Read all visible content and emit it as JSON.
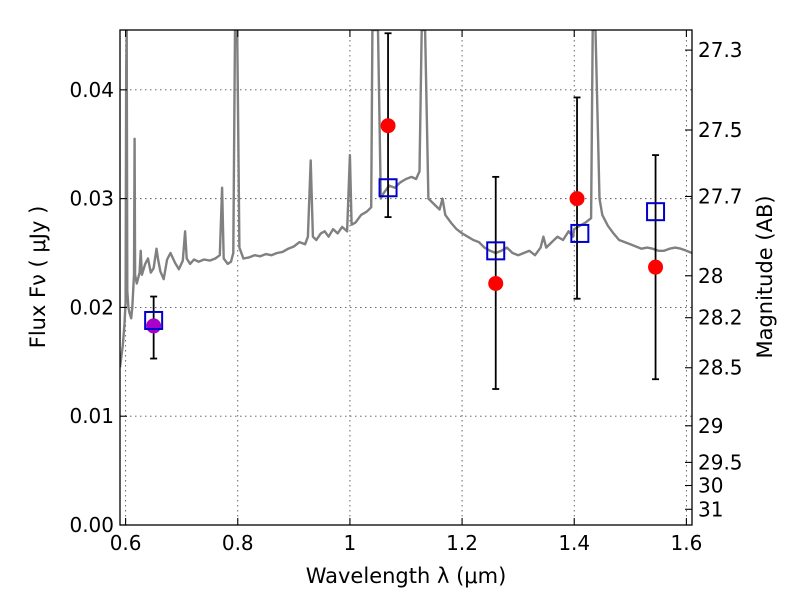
{
  "chart_data": {
    "type": "scatter",
    "title": "",
    "xlabel": "Wavelength  λ (μm)",
    "ylabel": "Flux  Fν ( μJy )",
    "ylabel_right": "Magnitude (AB)",
    "xlim": [
      0.59,
      1.61
    ],
    "ylim": [
      0.0,
      0.0455
    ],
    "grid": true,
    "x_ticks": [
      {
        "value": 0.6,
        "label": "0.6"
      },
      {
        "value": 0.8,
        "label": "0.8"
      },
      {
        "value": 1.0,
        "label": "1"
      },
      {
        "value": 1.2,
        "label": "1.2"
      },
      {
        "value": 1.4,
        "label": "1.4"
      },
      {
        "value": 1.6,
        "label": "1.6"
      }
    ],
    "y_ticks": [
      {
        "value": 0.0,
        "label": "0.00"
      },
      {
        "value": 0.01,
        "label": "0.01"
      },
      {
        "value": 0.02,
        "label": "0.02"
      },
      {
        "value": 0.03,
        "label": "0.03"
      },
      {
        "value": 0.04,
        "label": "0.04"
      }
    ],
    "right_ticks": [
      {
        "mag": 27.3,
        "label": "27.3"
      },
      {
        "mag": 27.5,
        "label": "27.5"
      },
      {
        "mag": 27.7,
        "label": "27.7"
      },
      {
        "mag": 28.0,
        "label": "28"
      },
      {
        "mag": 28.2,
        "label": "28.2"
      },
      {
        "mag": 28.5,
        "label": "28.5"
      },
      {
        "mag": 29.0,
        "label": "29"
      },
      {
        "mag": 29.5,
        "label": "29.5"
      },
      {
        "mag": 30.0,
        "label": "30"
      },
      {
        "mag": 31.0,
        "label": "31"
      }
    ],
    "series": [
      {
        "type": "line",
        "color": "#808080",
        "points": [
          [
            0.59,
            0.0145
          ],
          [
            0.595,
            0.0165
          ],
          [
            0.598,
            0.0185
          ],
          [
            0.6,
            0.0205
          ],
          [
            0.601,
            0.042
          ],
          [
            0.602,
            0.0455
          ],
          [
            0.603,
            0.0215
          ],
          [
            0.605,
            0.02
          ],
          [
            0.607,
            0.0195
          ],
          [
            0.61,
            0.019
          ],
          [
            0.612,
            0.02
          ],
          [
            0.615,
            0.023
          ],
          [
            0.616,
            0.0355
          ],
          [
            0.617,
            0.023
          ],
          [
            0.62,
            0.0222
          ],
          [
            0.625,
            0.0232
          ],
          [
            0.627,
            0.0252
          ],
          [
            0.629,
            0.023
          ],
          [
            0.635,
            0.024
          ],
          [
            0.64,
            0.0245
          ],
          [
            0.645,
            0.0232
          ],
          [
            0.65,
            0.0236
          ],
          [
            0.655,
            0.0254
          ],
          [
            0.658,
            0.0244
          ],
          [
            0.662,
            0.0233
          ],
          [
            0.668,
            0.0226
          ],
          [
            0.674,
            0.0244
          ],
          [
            0.68,
            0.025
          ],
          [
            0.688,
            0.0241
          ],
          [
            0.695,
            0.0235
          ],
          [
            0.702,
            0.0243
          ],
          [
            0.706,
            0.027
          ],
          [
            0.709,
            0.0245
          ],
          [
            0.715,
            0.024
          ],
          [
            0.722,
            0.0244
          ],
          [
            0.73,
            0.0242
          ],
          [
            0.74,
            0.0244
          ],
          [
            0.75,
            0.0243
          ],
          [
            0.76,
            0.0245
          ],
          [
            0.768,
            0.0248
          ],
          [
            0.772,
            0.031
          ],
          [
            0.775,
            0.0245
          ],
          [
            0.782,
            0.024
          ],
          [
            0.788,
            0.0242
          ],
          [
            0.792,
            0.025
          ],
          [
            0.795,
            0.0455
          ],
          [
            0.799,
            0.0455
          ],
          [
            0.803,
            0.0255
          ],
          [
            0.81,
            0.0245
          ],
          [
            0.82,
            0.0246
          ],
          [
            0.83,
            0.0248
          ],
          [
            0.84,
            0.0247
          ],
          [
            0.85,
            0.0249
          ],
          [
            0.86,
            0.0248
          ],
          [
            0.87,
            0.025
          ],
          [
            0.88,
            0.0251
          ],
          [
            0.89,
            0.0254
          ],
          [
            0.9,
            0.0256
          ],
          [
            0.91,
            0.026
          ],
          [
            0.92,
            0.0258
          ],
          [
            0.925,
            0.0265
          ],
          [
            0.93,
            0.0335
          ],
          [
            0.934,
            0.0265
          ],
          [
            0.94,
            0.0262
          ],
          [
            0.948,
            0.0268
          ],
          [
            0.955,
            0.027
          ],
          [
            0.962,
            0.0265
          ],
          [
            0.97,
            0.0272
          ],
          [
            0.978,
            0.0268
          ],
          [
            0.986,
            0.0274
          ],
          [
            0.995,
            0.027
          ],
          [
            1.0,
            0.034
          ],
          [
            1.003,
            0.0276
          ],
          [
            1.01,
            0.0278
          ],
          [
            1.02,
            0.0285
          ],
          [
            1.03,
            0.0288
          ],
          [
            1.038,
            0.0292
          ],
          [
            1.04,
            0.0455
          ],
          [
            1.05,
            0.0455
          ],
          [
            1.055,
            0.03
          ],
          [
            1.06,
            0.0305
          ],
          [
            1.07,
            0.0312
          ],
          [
            1.08,
            0.031
          ],
          [
            1.09,
            0.0315
          ],
          [
            1.1,
            0.0318
          ],
          [
            1.11,
            0.032
          ],
          [
            1.118,
            0.0318
          ],
          [
            1.124,
            0.0325
          ],
          [
            1.128,
            0.0455
          ],
          [
            1.134,
            0.0455
          ],
          [
            1.14,
            0.03
          ],
          [
            1.15,
            0.0295
          ],
          [
            1.16,
            0.029
          ],
          [
            1.165,
            0.03
          ],
          [
            1.17,
            0.0285
          ],
          [
            1.18,
            0.0278
          ],
          [
            1.19,
            0.0272
          ],
          [
            1.2,
            0.0268
          ],
          [
            1.21,
            0.0265
          ],
          [
            1.22,
            0.0262
          ],
          [
            1.23,
            0.026
          ],
          [
            1.24,
            0.0255
          ],
          [
            1.25,
            0.0252
          ],
          [
            1.26,
            0.025
          ],
          [
            1.27,
            0.0252
          ],
          [
            1.28,
            0.0255
          ],
          [
            1.29,
            0.025
          ],
          [
            1.3,
            0.0248
          ],
          [
            1.31,
            0.025
          ],
          [
            1.32,
            0.0252
          ],
          [
            1.33,
            0.0248
          ],
          [
            1.34,
            0.0255
          ],
          [
            1.345,
            0.0265
          ],
          [
            1.35,
            0.0255
          ],
          [
            1.36,
            0.026
          ],
          [
            1.37,
            0.0265
          ],
          [
            1.38,
            0.0262
          ],
          [
            1.39,
            0.027
          ],
          [
            1.398,
            0.0265
          ],
          [
            1.4,
            0.0272
          ],
          [
            1.41,
            0.0275
          ],
          [
            1.42,
            0.0278
          ],
          [
            1.43,
            0.0282
          ],
          [
            1.433,
            0.0455
          ],
          [
            1.438,
            0.0455
          ],
          [
            1.445,
            0.03
          ],
          [
            1.45,
            0.0285
          ],
          [
            1.46,
            0.0275
          ],
          [
            1.47,
            0.0268
          ],
          [
            1.48,
            0.0262
          ],
          [
            1.49,
            0.026
          ],
          [
            1.5,
            0.0258
          ],
          [
            1.51,
            0.0256
          ],
          [
            1.52,
            0.0254
          ],
          [
            1.53,
            0.0255
          ],
          [
            1.54,
            0.0254
          ],
          [
            1.55,
            0.0252
          ],
          [
            1.56,
            0.0252
          ],
          [
            1.57,
            0.0254
          ],
          [
            1.58,
            0.0255
          ],
          [
            1.59,
            0.0254
          ],
          [
            1.6,
            0.0252
          ],
          [
            1.61,
            0.025
          ]
        ]
      },
      {
        "type": "scatter",
        "marker": "circle",
        "color": "#ff0000",
        "points": [
          {
            "x": 0.65,
            "y": 0.0183,
            "yerr_low": 0.0153,
            "yerr_high": 0.021
          },
          {
            "x": 1.068,
            "y": 0.0367,
            "yerr_low": 0.0283,
            "yerr_high": 0.0452
          },
          {
            "x": 1.26,
            "y": 0.0222,
            "yerr_low": 0.0125,
            "yerr_high": 0.032
          },
          {
            "x": 1.405,
            "y": 0.03,
            "yerr_low": 0.0208,
            "yerr_high": 0.0393
          },
          {
            "x": 1.545,
            "y": 0.0237,
            "yerr_low": 0.0134,
            "yerr_high": 0.034
          }
        ]
      },
      {
        "type": "scatter",
        "marker": "open-square",
        "color": "#0000cc",
        "points": [
          {
            "x": 0.65,
            "y": 0.0188
          },
          {
            "x": 1.068,
            "y": 0.031
          },
          {
            "x": 1.26,
            "y": 0.0252
          },
          {
            "x": 1.41,
            "y": 0.0268
          },
          {
            "x": 1.545,
            "y": 0.0288
          }
        ]
      }
    ],
    "highlight_color": "#aa00cc"
  }
}
